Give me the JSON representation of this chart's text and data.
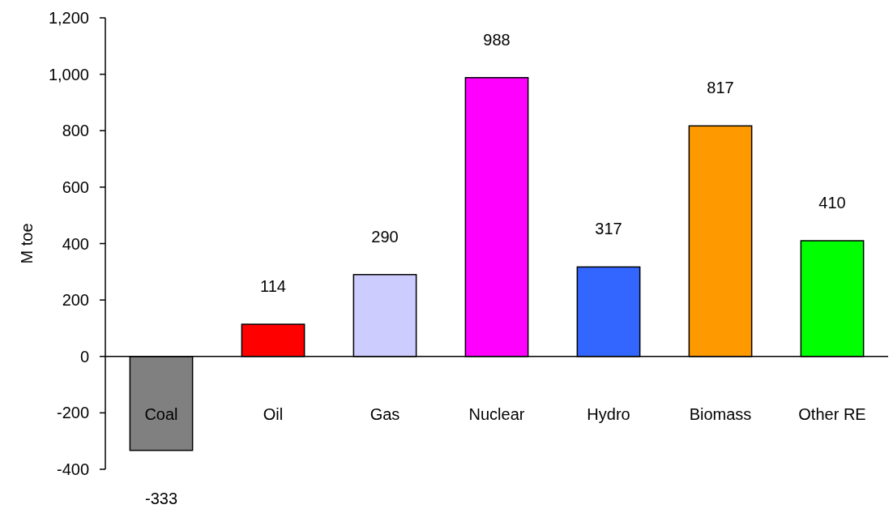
{
  "chart_data": {
    "type": "bar",
    "ylabel": "M toe",
    "categories": [
      "Coal",
      "Oil",
      "Gas",
      "Nuclear",
      "Hydro",
      "Biomass",
      "Other RE"
    ],
    "values": [
      -333,
      114,
      290,
      988,
      317,
      817,
      410
    ],
    "colors": [
      "#808080",
      "#ff0000",
      "#ccccff",
      "#ff00ff",
      "#3366ff",
      "#ff9900",
      "#00ff00"
    ],
    "ylim": [
      -400,
      1200
    ],
    "yticks": [
      -400,
      -200,
      0,
      200,
      400,
      600,
      800,
      {
        "value": 1000,
        "label": "1,000"
      },
      {
        "value": 1200,
        "label": "1,200"
      }
    ],
    "data_labels": true
  }
}
